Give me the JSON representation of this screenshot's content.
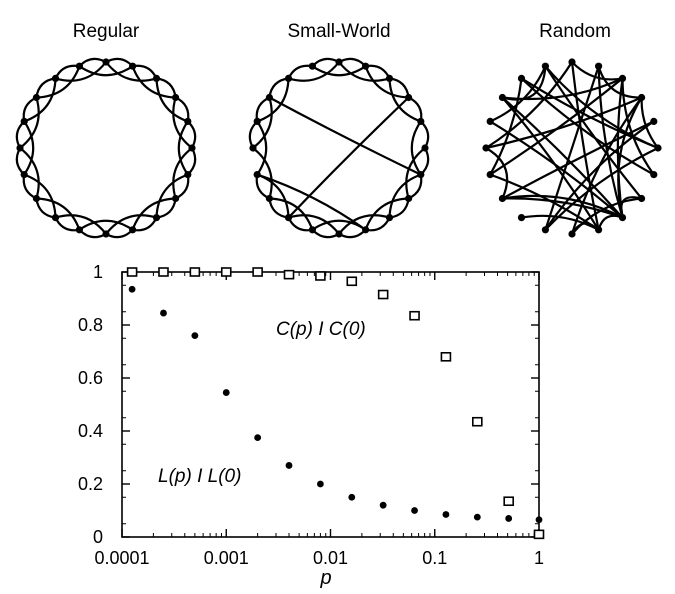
{
  "networks": [
    {
      "name": "regular",
      "title": "Regular"
    },
    {
      "name": "small-world",
      "title": "Small-World"
    },
    {
      "name": "random",
      "title": "Random"
    }
  ],
  "chart_data": {
    "type": "scatter",
    "xscale": "log",
    "xlim": [
      0.0001,
      1
    ],
    "ylim": [
      0,
      1
    ],
    "xlabel": "p",
    "ylabel": "",
    "title": "",
    "x_ticks": [
      {
        "value": 0.0001,
        "label": "0.0001"
      },
      {
        "value": 0.001,
        "label": "0.001"
      },
      {
        "value": 0.01,
        "label": "0.01"
      },
      {
        "value": 0.1,
        "label": "0.1"
      },
      {
        "value": 1,
        "label": "1"
      }
    ],
    "y_ticks": [
      {
        "value": 0,
        "label": "0"
      },
      {
        "value": 0.2,
        "label": "0.2"
      },
      {
        "value": 0.4,
        "label": "0.4"
      },
      {
        "value": 0.6,
        "label": "0.6"
      },
      {
        "value": 0.8,
        "label": "0.8"
      },
      {
        "value": 1,
        "label": "1"
      }
    ],
    "grid": false,
    "series": [
      {
        "name": "C(p) / C(0)",
        "marker": "open-square",
        "x": [
          0.000125,
          0.00025,
          0.0005,
          0.001,
          0.002,
          0.004,
          0.008,
          0.016,
          0.032,
          0.064,
          0.128,
          0.256,
          0.512,
          1
        ],
        "y": [
          1.0,
          1.0,
          1.0,
          1.0,
          1.0,
          0.99,
          0.985,
          0.965,
          0.915,
          0.835,
          0.68,
          0.435,
          0.135,
          0.01
        ]
      },
      {
        "name": "L(p) / L(0)",
        "marker": "filled-circle",
        "x": [
          0.000125,
          0.00025,
          0.0005,
          0.001,
          0.002,
          0.004,
          0.008,
          0.016,
          0.032,
          0.064,
          0.128,
          0.256,
          0.512,
          1
        ],
        "y": [
          0.935,
          0.845,
          0.76,
          0.545,
          0.375,
          0.27,
          0.2,
          0.15,
          0.12,
          0.1,
          0.085,
          0.075,
          0.07,
          0.065
        ]
      }
    ],
    "annotations": [
      {
        "name": "c-label",
        "text": "C(p) I C(0)"
      },
      {
        "name": "l-label",
        "text": "L(p) I L(0)"
      }
    ]
  }
}
